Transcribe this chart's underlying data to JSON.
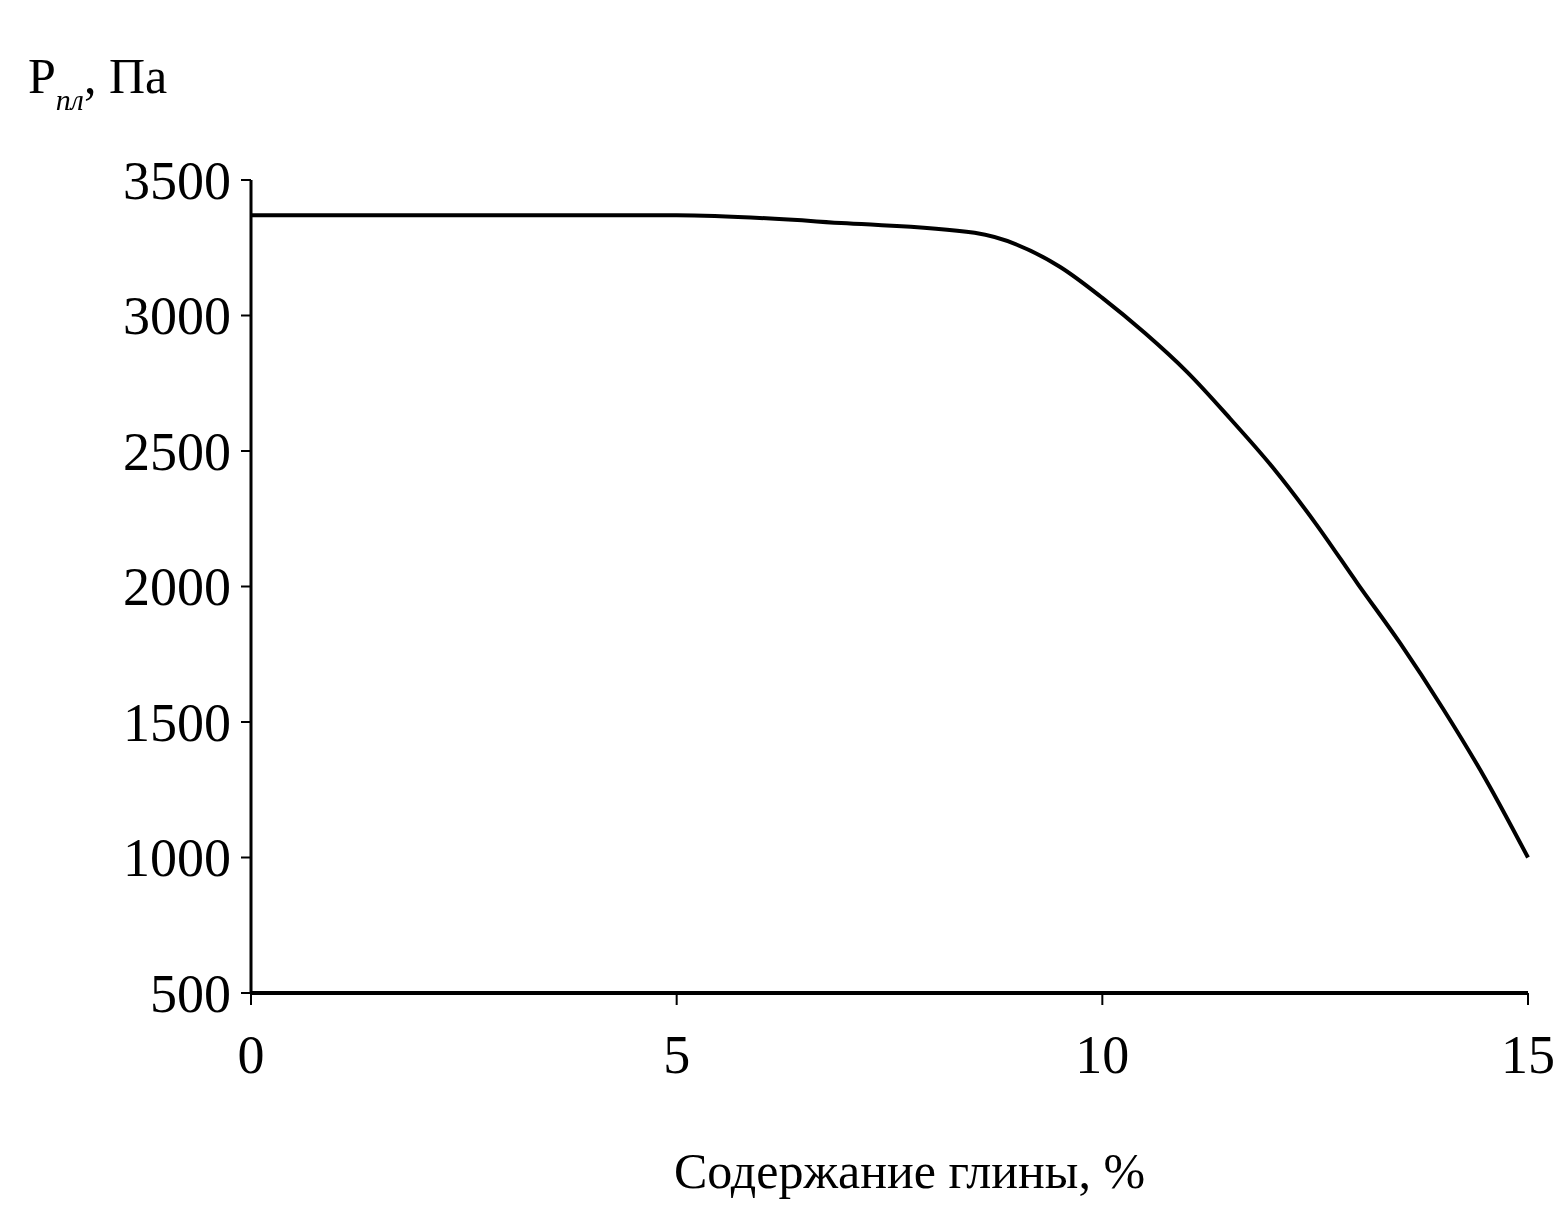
{
  "chart_data": {
    "type": "line",
    "xlabel": "Содержание глины, %",
    "ylabel": "P$_{пл}$, Па",
    "x": [
      0,
      5,
      7,
      8.5,
      9.5,
      10,
      10.5,
      11,
      11.5,
      12,
      12.5,
      13,
      13.5,
      14,
      14.5,
      15
    ],
    "series": [
      {
        "color": "#000000",
        "values": [
          3370,
          3370,
          3340,
          3305,
          3180,
          3065,
          2935,
          2790,
          2620,
          2440,
          2235,
          2010,
          1790,
          1550,
          1290,
          1000
        ]
      }
    ],
    "xlim": [
      0,
      15
    ],
    "xticks": [
      0,
      5,
      10,
      15
    ],
    "ylim": [
      500,
      3500
    ],
    "yticks": [
      500,
      1000,
      1500,
      2000,
      2500,
      3000,
      3500
    ],
    "marker": "none",
    "line_style": "solid"
  }
}
